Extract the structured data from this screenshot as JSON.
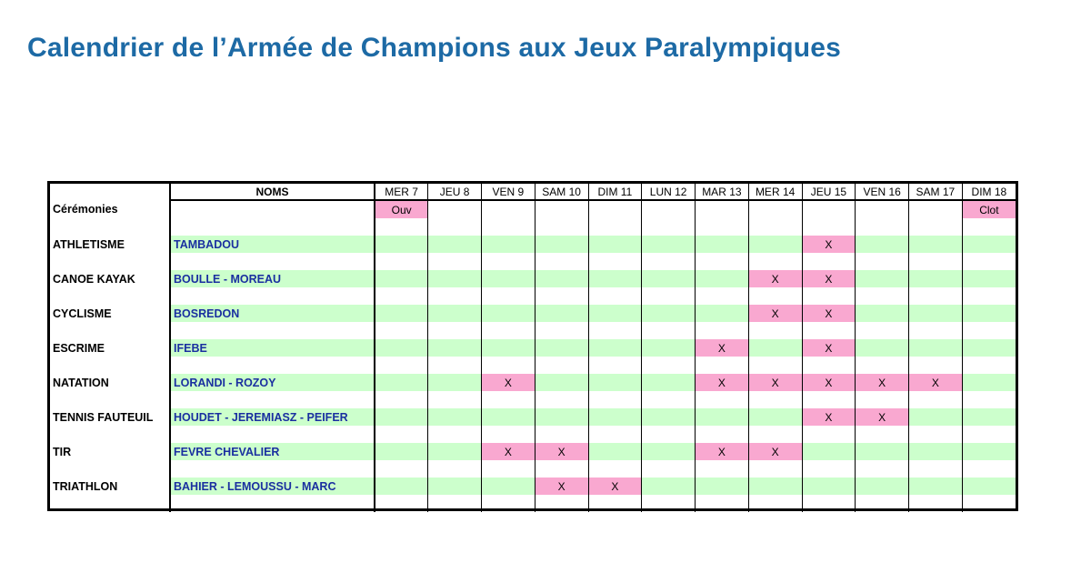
{
  "title": "Calendrier de l’Armée de Champions aux Jeux Paralympiques",
  "header": {
    "names_label": "NOMS",
    "days": [
      "MER 7",
      "JEU 8",
      "VEN 9",
      "SAM 10",
      "DIM 11",
      "LUN 12",
      "MAR 13",
      "MER 14",
      "JEU 15",
      "VEN 16",
      "SAM 17",
      "DIM 18"
    ]
  },
  "ceremonies": {
    "label": "Cérémonies",
    "marks": [
      "Ouv",
      "",
      "",
      "",
      "",
      "",
      "",
      "",
      "",
      "",
      "",
      "Clot"
    ]
  },
  "colors": {
    "title": "#1d6aa5",
    "band": "#ccffcc",
    "mark": "#f9a8d0",
    "names": "#1a2fa0"
  },
  "sports": [
    {
      "sport": "ATHLETISME",
      "names": "TAMBADOU",
      "marks": [
        "",
        "",
        "",
        "",
        "",
        "",
        "",
        "",
        "X",
        "",
        "",
        ""
      ]
    },
    {
      "sport": "CANOE KAYAK",
      "names": "BOULLE - MOREAU",
      "marks": [
        "",
        "",
        "",
        "",
        "",
        "",
        "",
        "X",
        "X",
        "",
        "",
        ""
      ]
    },
    {
      "sport": "CYCLISME",
      "names": "BOSREDON",
      "marks": [
        "",
        "",
        "",
        "",
        "",
        "",
        "",
        "X",
        "X",
        "",
        "",
        ""
      ]
    },
    {
      "sport": "ESCRIME",
      "names": "IFEBE",
      "marks": [
        "",
        "",
        "",
        "",
        "",
        "",
        "X",
        "",
        "X",
        "",
        "",
        ""
      ]
    },
    {
      "sport": "NATATION",
      "names": "LORANDI - ROZOY",
      "marks": [
        "",
        "",
        "X",
        "",
        "",
        "",
        "X",
        "X",
        "X",
        "X",
        "X",
        ""
      ]
    },
    {
      "sport": "TENNIS FAUTEUIL",
      "names": "HOUDET - JEREMIASZ - PEIFER",
      "marks": [
        "",
        "",
        "",
        "",
        "",
        "",
        "",
        "",
        "X",
        "X",
        "",
        ""
      ]
    },
    {
      "sport": "TIR",
      "names": "FEVRE CHEVALIER",
      "marks": [
        "",
        "",
        "X",
        "X",
        "",
        "",
        "X",
        "X",
        "",
        "",
        "",
        ""
      ]
    },
    {
      "sport": "TRIATHLON",
      "names": "BAHIER - LEMOUSSU - MARC",
      "marks": [
        "",
        "",
        "",
        "X",
        "X",
        "",
        "",
        "",
        "",
        "",
        "",
        ""
      ]
    }
  ]
}
